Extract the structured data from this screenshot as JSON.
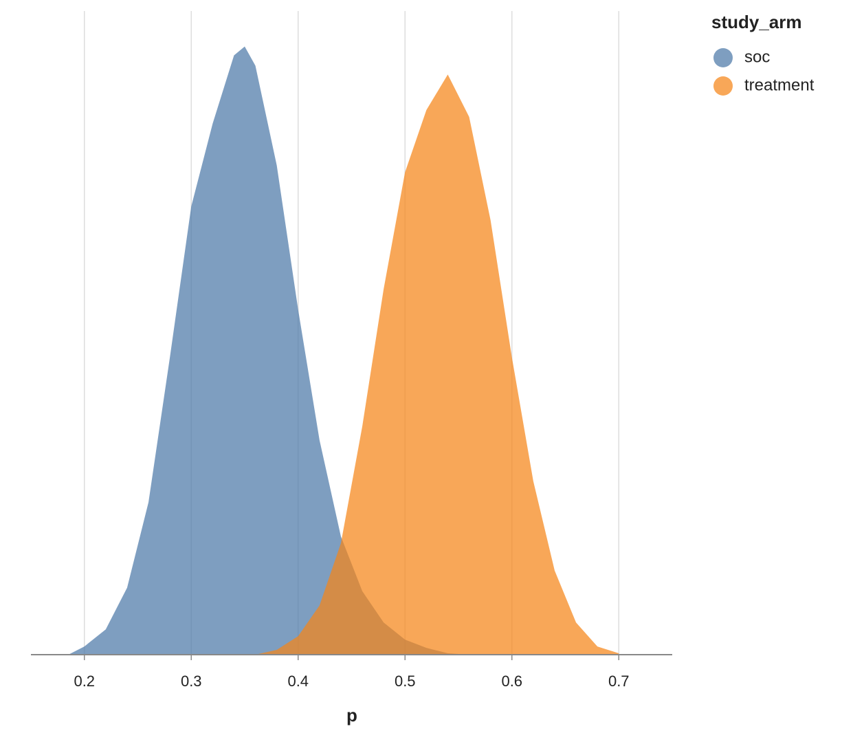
{
  "chart_data": {
    "type": "area",
    "x_label": "p",
    "legend_title": "study_arm",
    "legend_position": "right",
    "grid": true,
    "xlim": [
      0.15,
      0.75
    ],
    "xticks": [
      0.2,
      0.3,
      0.4,
      0.5,
      0.6,
      0.7
    ],
    "ylim": [
      0,
      9.5
    ],
    "series": [
      {
        "name": "soc",
        "color": "#4c78a8",
        "x": [
          0.185,
          0.2,
          0.22,
          0.24,
          0.26,
          0.28,
          0.3,
          0.32,
          0.34,
          0.35,
          0.36,
          0.38,
          0.4,
          0.42,
          0.44,
          0.46,
          0.48,
          0.5,
          0.52,
          0.54,
          0.56
        ],
        "values": [
          0,
          0.12,
          0.37,
          0.98,
          2.23,
          4.35,
          6.56,
          7.77,
          8.77,
          8.9,
          8.62,
          7.16,
          5.05,
          3.14,
          1.73,
          0.93,
          0.47,
          0.22,
          0.1,
          0.02,
          0
        ]
      },
      {
        "name": "treatment",
        "color": "#f58518",
        "x": [
          0.36,
          0.38,
          0.4,
          0.42,
          0.44,
          0.46,
          0.48,
          0.5,
          0.52,
          0.54,
          0.56,
          0.58,
          0.6,
          0.62,
          0.64,
          0.66,
          0.68,
          0.7
        ],
        "values": [
          0,
          0.07,
          0.27,
          0.72,
          1.63,
          3.34,
          5.35,
          7.06,
          7.97,
          8.49,
          7.87,
          6.36,
          4.35,
          2.54,
          1.23,
          0.47,
          0.12,
          0.02
        ]
      }
    ]
  }
}
